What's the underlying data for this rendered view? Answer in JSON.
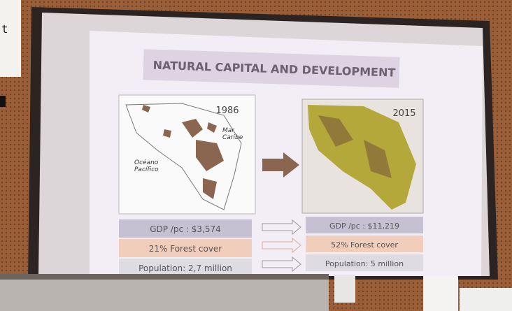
{
  "edge_text": "t",
  "slide": {
    "title": "NATURAL CAPITAL AND DEVELOPMENT",
    "left_map": {
      "year": "1986",
      "sea_label": "Mar Caribe",
      "ocean_label": "Océano Pacífico"
    },
    "right_map": {
      "year": "2015"
    },
    "left_stats": [
      "GDP /pc : $3,574",
      "21% Forest cover",
      "Population: 2,7 million"
    ],
    "right_stats": [
      "GDP /pc : $11,219",
      "52% Forest cover",
      "Population: 5 million"
    ]
  }
}
